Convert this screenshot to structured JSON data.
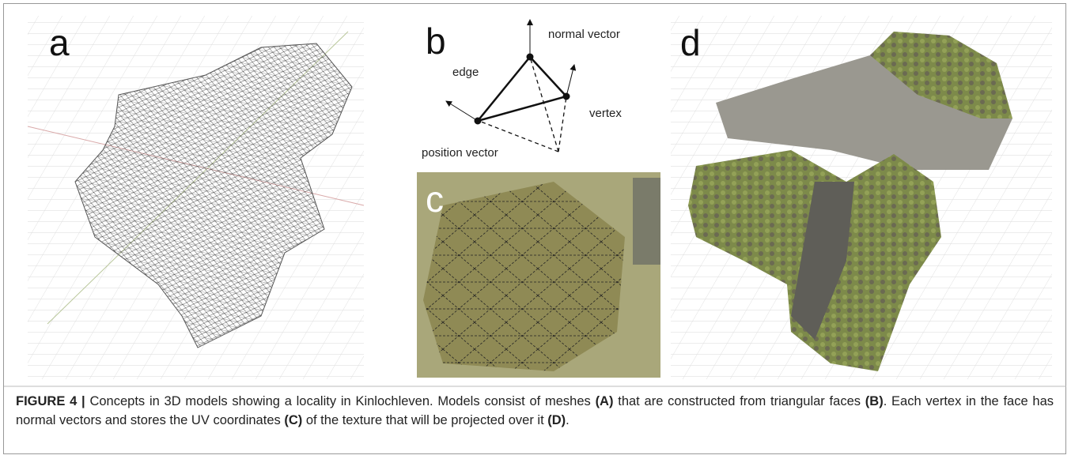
{
  "panels": {
    "a": "a",
    "b": "b",
    "c": "c",
    "d": "d"
  },
  "diagram": {
    "normal_vector": "normal vector",
    "edge": "edge",
    "vertex": "vertex",
    "position_vector": "position vector"
  },
  "caption": {
    "label": "FIGURE 4 |",
    "segments": [
      " Concepts in 3D models showing a locality in Kinlochleven. Models consist of meshes ",
      "(A)",
      " that are constructed from triangular faces ",
      "(B)",
      ". Each vertex in the face has normal vectors and stores the UV coordinates ",
      "(C)",
      " of the texture that will be projected over it ",
      "(D)",
      "."
    ]
  }
}
